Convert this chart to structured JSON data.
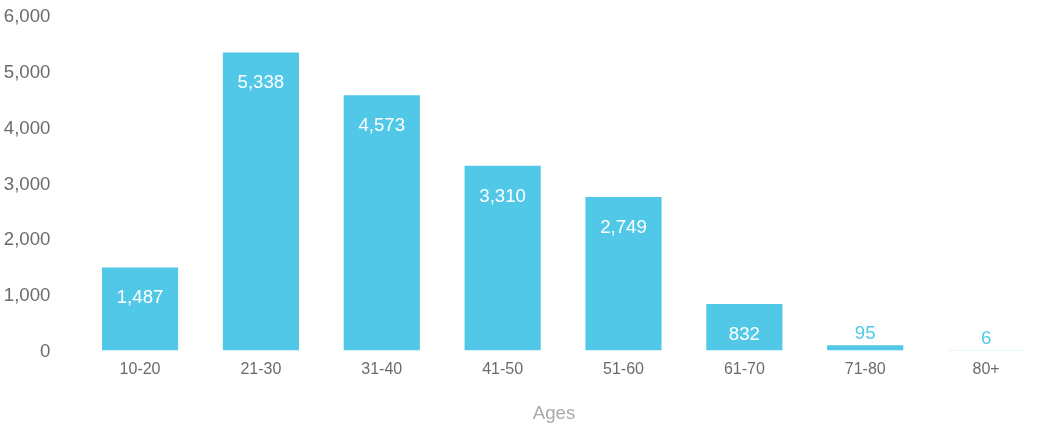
{
  "chart_data": {
    "type": "bar",
    "xlabel": "Ages",
    "categories": [
      "10-20",
      "21-30",
      "31-40",
      "41-50",
      "51-60",
      "61-70",
      "71-80",
      "80+"
    ],
    "values": [
      1487,
      5338,
      4573,
      3310,
      2749,
      832,
      95,
      6
    ],
    "color": "#51c8e8",
    "ylim": [
      0,
      6000
    ],
    "yticks": [
      {
        "value": 0,
        "label": "0"
      },
      {
        "value": 1000,
        "label": "1,000"
      },
      {
        "value": 2000,
        "label": "2,000"
      },
      {
        "value": 3000,
        "label": "3,000"
      },
      {
        "value": 4000,
        "label": "4,000"
      },
      {
        "value": 5000,
        "label": "5,000"
      },
      {
        "value": 6000,
        "label": "6,000"
      }
    ],
    "value_labels": [
      "1,487",
      "5,338",
      "4,573",
      "3,310",
      "2,749",
      "832",
      "95",
      "6"
    ],
    "grid": false
  }
}
